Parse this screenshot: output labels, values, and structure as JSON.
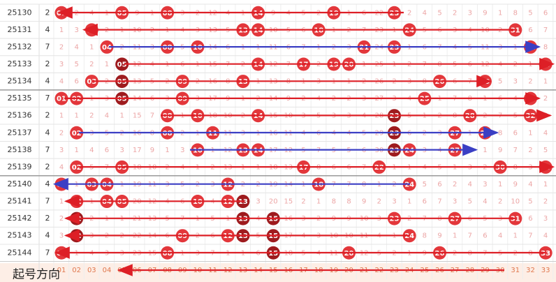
{
  "rows": [
    {
      "issue": "25130",
      "tail": 2,
      "dark": [],
      "cells": [
        "01",
        2,
        4,
        1,
        "05",
        9,
        1,
        "08",
        3,
        2,
        12,
        4,
        1,
        "14",
        9,
        4,
        5,
        2,
        "19",
        1,
        6,
        22,
        "23",
        2,
        4,
        5,
        2,
        3,
        9,
        1,
        8,
        5,
        6
      ]
    },
    {
      "issue": "25131",
      "tail": 4,
      "dark": [],
      "cells": [
        1,
        3,
        "03",
        2,
        1,
        10,
        2,
        1,
        4,
        3,
        13,
        5,
        "13",
        "14",
        10,
        5,
        6,
        "18",
        1,
        2,
        7,
        23,
        1,
        "24",
        5,
        6,
        3,
        4,
        10,
        2,
        "31",
        6,
        7
      ]
    },
    {
      "issue": "25132",
      "tail": 7,
      "dark": [],
      "cells": [
        2,
        4,
        1,
        "04",
        2,
        11,
        3,
        "08",
        5,
        "10",
        14,
        6,
        1,
        1,
        11,
        6,
        7,
        1,
        2,
        3,
        "21",
        24,
        "23",
        1,
        6,
        7,
        4,
        5,
        11,
        3,
        1,
        "32",
        8
      ]
    },
    {
      "issue": "25133",
      "tail": 2,
      "dark": [
        4
      ],
      "cells": [
        3,
        5,
        2,
        1,
        "05",
        12,
        4,
        1,
        6,
        1,
        15,
        7,
        2,
        "14",
        12,
        7,
        "17",
        2,
        "19",
        "20",
        1,
        25,
        1,
        2,
        7,
        8,
        5,
        6,
        12,
        4,
        2,
        1,
        "33"
      ]
    },
    {
      "issue": "25134",
      "tail": 4,
      "dark": [
        4
      ],
      "cells": [
        4,
        6,
        "03",
        2,
        "05",
        13,
        5,
        2,
        "09",
        2,
        16,
        8,
        "13",
        1,
        13,
        8,
        1,
        3,
        1,
        1,
        2,
        26,
        2,
        3,
        8,
        "26",
        6,
        7,
        "29",
        5,
        3,
        2,
        1
      ]
    },
    {
      "issue": "25135",
      "tail": 7,
      "dark": [
        4
      ],
      "cells": [
        "01",
        "02",
        1,
        3,
        "05",
        14,
        6,
        3,
        "09",
        3,
        17,
        9,
        1,
        2,
        14,
        9,
        2,
        4,
        2,
        2,
        3,
        27,
        3,
        4,
        "25",
        1,
        7,
        8,
        1,
        6,
        4,
        "32",
        2
      ]
    },
    {
      "issue": "25136",
      "tail": 2,
      "dark": [
        22
      ],
      "cells": [
        1,
        1,
        2,
        4,
        1,
        15,
        7,
        "08",
        1,
        "10",
        18,
        10,
        2,
        "14",
        15,
        10,
        3,
        5,
        3,
        3,
        4,
        28,
        "23",
        5,
        1,
        2,
        8,
        "28",
        2,
        7,
        5,
        "32",
        3
      ]
    },
    {
      "issue": "25137",
      "tail": 4,
      "dark": [
        22
      ],
      "cells": [
        2,
        "02",
        3,
        5,
        2,
        16,
        8,
        "08",
        2,
        1,
        "11",
        11,
        3,
        1,
        16,
        11,
        4,
        6,
        4,
        4,
        5,
        29,
        "23",
        6,
        2,
        3,
        "27",
        1,
        "29",
        8,
        6,
        1,
        4
      ]
    },
    {
      "issue": "25138",
      "tail": 7,
      "dark": [
        22
      ],
      "cells": [
        3,
        1,
        4,
        6,
        3,
        17,
        9,
        1,
        3,
        "10",
        1,
        12,
        "13",
        "14",
        17,
        12,
        5,
        7,
        5,
        5,
        6,
        30,
        "23",
        "24",
        3,
        4,
        "27",
        2,
        1,
        9,
        7,
        2,
        5
      ]
    },
    {
      "issue": "25139",
      "tail": 2,
      "dark": [],
      "cells": [
        4,
        "02",
        5,
        7,
        "05",
        18,
        10,
        2,
        4,
        1,
        2,
        13,
        1,
        1,
        18,
        13,
        "17",
        8,
        6,
        6,
        7,
        "22",
        1,
        1,
        4,
        5,
        1,
        3,
        2,
        "30",
        8,
        3,
        "33"
      ]
    },
    {
      "issue": "25140",
      "tail": 4,
      "dark": [],
      "cells": [
        "01",
        1,
        "03",
        "04",
        1,
        19,
        11,
        3,
        5,
        2,
        3,
        "12",
        2,
        2,
        19,
        14,
        1,
        "18",
        7,
        7,
        8,
        1,
        2,
        "24",
        5,
        6,
        2,
        4,
        3,
        1,
        9,
        4,
        1
      ]
    },
    {
      "issue": "25141",
      "tail": 7,
      "dark": [
        12
      ],
      "cells": [
        1,
        "02",
        1,
        "04",
        "05",
        20,
        12,
        4,
        6,
        "10",
        4,
        "12",
        "13",
        3,
        20,
        15,
        2,
        1,
        8,
        8,
        9,
        2,
        3,
        1,
        6,
        7,
        3,
        5,
        4,
        2,
        10,
        5,
        2
      ]
    },
    {
      "issue": "25142",
      "tail": 2,
      "dark": [
        1,
        12,
        14
      ],
      "cells": [
        2,
        "02",
        2,
        1,
        1,
        21,
        13,
        5,
        7,
        1,
        5,
        1,
        "13",
        4,
        "15",
        16,
        3,
        2,
        9,
        9,
        10,
        3,
        "23",
        2,
        7,
        8,
        "27",
        6,
        5,
        3,
        "31",
        6,
        3
      ]
    },
    {
      "issue": "25143",
      "tail": 4,
      "dark": [
        1,
        12,
        14
      ],
      "cells": [
        3,
        "02",
        3,
        2,
        2,
        22,
        14,
        6,
        "09",
        2,
        6,
        "12",
        "13",
        5,
        "15",
        17,
        4,
        3,
        10,
        10,
        11,
        4,
        1,
        "24",
        8,
        9,
        1,
        7,
        6,
        4,
        1,
        7,
        4
      ]
    },
    {
      "issue": "25144",
      "tail": 7,
      "dark": [
        14
      ],
      "cells": [
        "01",
        1,
        4,
        3,
        3,
        23,
        15,
        "08",
        1,
        3,
        7,
        1,
        1,
        6,
        "15",
        18,
        5,
        4,
        11,
        "20",
        12,
        5,
        2,
        1,
        9,
        "26",
        2,
        8,
        7,
        5,
        2,
        8,
        "33"
      ]
    }
  ],
  "footer": [
    "01",
    "02",
    "03",
    "04",
    "05",
    "06",
    "07",
    "08",
    "09",
    "10",
    "11",
    "12",
    "13",
    "14",
    "15",
    "16",
    "17",
    "18",
    "19",
    "20",
    "21",
    "22",
    "23",
    "24",
    "25",
    "26",
    "27",
    "28",
    "29",
    "30",
    "31",
    "32",
    "33"
  ],
  "label": "起号方向"
}
